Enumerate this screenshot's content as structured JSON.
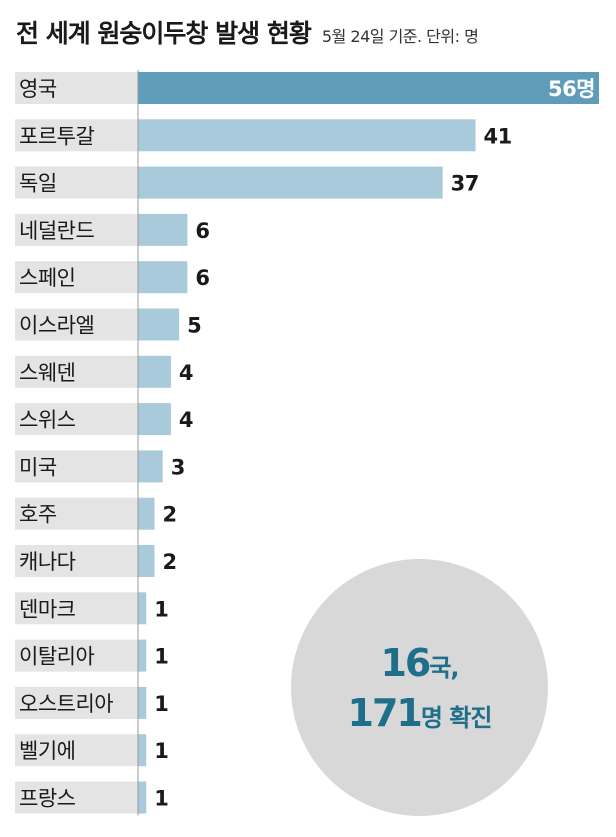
{
  "header": {
    "title": "전 세계 원숭이두창 발생 현황",
    "subtitle": "5월 24일 기준. 단위: 명"
  },
  "summary": {
    "country_count": "16",
    "country_unit": "국,",
    "case_count": "171",
    "case_unit": "명 확진"
  },
  "colors": {
    "highlight_bar": "#5f9cb9",
    "bar": "#a9cadb",
    "label_bg": "#e4e4e4",
    "summary_text": "#1f6f8b",
    "summary_circle": "#d8d8d8"
  },
  "chart_data": {
    "type": "bar",
    "orientation": "horizontal",
    "title": "전 세계 원숭이두창 발생 현황",
    "subtitle": "5월 24일 기준. 단위: 명",
    "categories": [
      "영국",
      "포르투갈",
      "독일",
      "네덜란드",
      "스페인",
      "이스라엘",
      "스웨덴",
      "스위스",
      "미국",
      "호주",
      "캐나다",
      "덴마크",
      "이탈리아",
      "오스트리아",
      "벨기에",
      "프랑스"
    ],
    "values": [
      56,
      41,
      37,
      6,
      6,
      5,
      4,
      4,
      3,
      2,
      2,
      1,
      1,
      1,
      1,
      1
    ],
    "value_labels": [
      "56명",
      "41",
      "37",
      "6",
      "6",
      "5",
      "4",
      "4",
      "3",
      "2",
      "2",
      "1",
      "1",
      "1",
      "1",
      "1"
    ],
    "xlim": [
      0,
      56
    ],
    "highlight_index": 0,
    "grid": false,
    "legend": "none"
  }
}
